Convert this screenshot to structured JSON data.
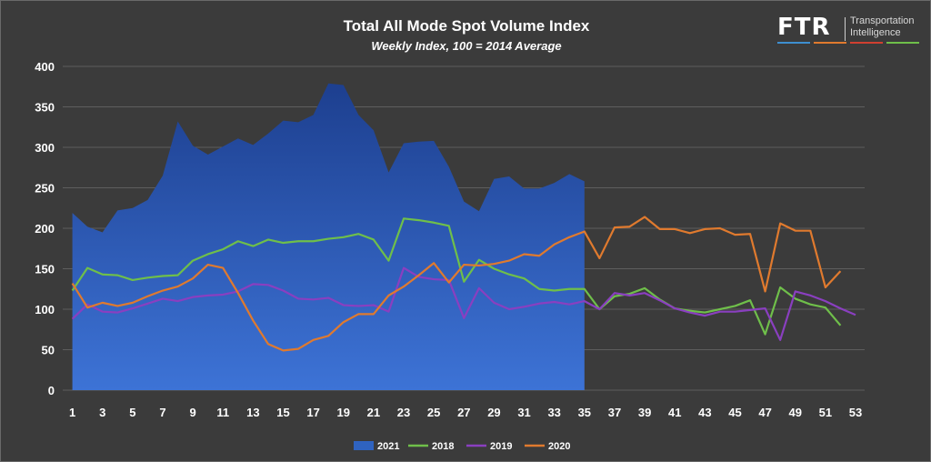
{
  "title": "Total All Mode Spot Volume Index",
  "subtitle": "Weekly Index, 100 = 2014 Average",
  "logo": {
    "mark": "FTR",
    "line1": "Transportation",
    "line2": "Intelligence",
    "bar_colors": [
      "#3e8fd0",
      "#e07a2e",
      "#d04030",
      "#6fbf4a"
    ]
  },
  "chart_data": {
    "type": "line",
    "title": "Total All Mode Spot Volume Index",
    "subtitle": "Weekly Index, 100 = 2014 Average",
    "xlabel": "",
    "ylabel": "",
    "xlim": [
      1,
      53
    ],
    "ylim": [
      0,
      400
    ],
    "y_ticks": [
      0,
      50,
      100,
      150,
      200,
      250,
      300,
      350,
      400
    ],
    "x_ticks": [
      1,
      3,
      5,
      7,
      9,
      11,
      13,
      15,
      17,
      19,
      21,
      23,
      25,
      27,
      29,
      31,
      33,
      35,
      37,
      39,
      41,
      43,
      45,
      47,
      49,
      51,
      53
    ],
    "grid": true,
    "legend_position": "bottom",
    "series": [
      {
        "name": "2021",
        "type": "area",
        "color": "#2f63c0",
        "x": [
          1,
          2,
          3,
          4,
          5,
          6,
          7,
          8,
          9,
          10,
          11,
          12,
          13,
          14,
          15,
          16,
          17,
          18,
          19,
          20,
          21,
          22,
          23,
          24,
          25,
          26,
          27,
          28,
          29,
          30,
          31,
          32,
          33,
          34,
          35
        ],
        "values": [
          219,
          202,
          195,
          222,
          225,
          235,
          265,
          332,
          302,
          291,
          301,
          311,
          303,
          317,
          333,
          331,
          340,
          379,
          377,
          340,
          321,
          269,
          305,
          307,
          308,
          276,
          233,
          221,
          261,
          264,
          249,
          249,
          256,
          267,
          258
        ]
      },
      {
        "name": "2018",
        "type": "line",
        "color": "#6fbf4a",
        "x": [
          1,
          2,
          3,
          4,
          5,
          6,
          7,
          8,
          9,
          10,
          11,
          12,
          13,
          14,
          15,
          16,
          17,
          18,
          19,
          20,
          21,
          22,
          23,
          24,
          25,
          26,
          27,
          28,
          29,
          30,
          31,
          32,
          33,
          34,
          35,
          36,
          37,
          38,
          39,
          40,
          41,
          42,
          43,
          44,
          45,
          46,
          47,
          48,
          49,
          50,
          51,
          52
        ],
        "values": [
          123,
          151,
          143,
          142,
          136,
          139,
          141,
          142,
          160,
          168,
          174,
          184,
          178,
          186,
          182,
          184,
          184,
          187,
          189,
          193,
          186,
          160,
          212,
          210,
          207,
          203,
          134,
          161,
          150,
          143,
          138,
          125,
          123,
          125,
          125,
          100,
          116,
          119,
          126,
          112,
          101,
          98,
          96,
          100,
          104,
          111,
          69,
          127,
          113,
          106,
          102,
          80
        ]
      },
      {
        "name": "2019",
        "type": "line",
        "color": "#8a3fc0",
        "x": [
          1,
          2,
          3,
          4,
          5,
          6,
          7,
          8,
          9,
          10,
          11,
          12,
          13,
          14,
          15,
          16,
          17,
          18,
          19,
          20,
          21,
          22,
          23,
          24,
          25,
          26,
          27,
          28,
          29,
          30,
          31,
          32,
          33,
          34,
          35,
          36,
          37,
          38,
          39,
          40,
          41,
          42,
          43,
          44,
          45,
          46,
          47,
          48,
          49,
          50,
          51,
          52,
          53
        ],
        "values": [
          88,
          106,
          97,
          96,
          101,
          107,
          113,
          110,
          115,
          117,
          118,
          122,
          131,
          130,
          123,
          113,
          112,
          114,
          105,
          104,
          105,
          97,
          151,
          140,
          137,
          136,
          89,
          126,
          108,
          100,
          103,
          107,
          109,
          106,
          110,
          100,
          120,
          117,
          120,
          111,
          101,
          96,
          92,
          97,
          97,
          99,
          101,
          62,
          122,
          117,
          110,
          101,
          93
        ]
      },
      {
        "name": "2020",
        "type": "line",
        "color": "#e07a2e",
        "x": [
          1,
          2,
          3,
          4,
          5,
          6,
          7,
          8,
          9,
          10,
          11,
          12,
          13,
          14,
          15,
          16,
          17,
          18,
          19,
          20,
          21,
          22,
          23,
          24,
          25,
          26,
          27,
          28,
          29,
          30,
          31,
          32,
          33,
          34,
          35,
          36,
          37,
          38,
          39,
          40,
          41,
          42,
          43,
          44,
          45,
          46,
          47,
          48,
          49,
          50,
          51,
          52
        ],
        "values": [
          132,
          102,
          108,
          104,
          108,
          116,
          123,
          128,
          138,
          155,
          151,
          120,
          86,
          57,
          49,
          51,
          62,
          67,
          84,
          94,
          94,
          117,
          128,
          142,
          157,
          133,
          155,
          154,
          156,
          160,
          168,
          166,
          180,
          189,
          196,
          163,
          201,
          202,
          214,
          199,
          199,
          194,
          199,
          200,
          192,
          193,
          122,
          206,
          197,
          197,
          127,
          147
        ]
      }
    ]
  }
}
